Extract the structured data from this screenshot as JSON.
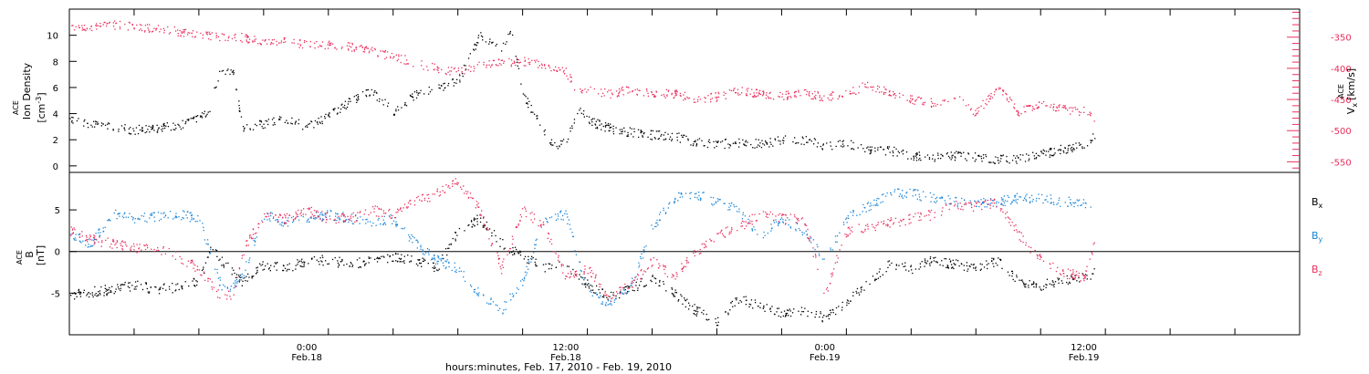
{
  "figure": {
    "xaxis_title": "hours:minutes, Feb. 17, 2010 - Feb. 19, 2010",
    "x_ticks": [
      {
        "hour": 24,
        "time": "0:00",
        "date": "Feb.18"
      },
      {
        "hour": 36,
        "time": "12:00",
        "date": "Feb.18"
      },
      {
        "hour": 48,
        "time": "0:00",
        "date": "Feb.19"
      },
      {
        "hour": 60,
        "time": "12:00",
        "date": "Feb.19"
      }
    ],
    "x_range_hours": [
      13,
      70
    ],
    "colors": {
      "black": "#000000",
      "pink": "#e8305e",
      "blue": "#1c86d8",
      "axis": "#000000"
    }
  },
  "chart_data": [
    {
      "type": "scatter",
      "panel": "top",
      "ylabel": {
        "prefix": "ACE",
        "name": "Ion Density",
        "unit_open": "[cm",
        "unit_exp": "-3",
        "unit_close": "]"
      },
      "ylim": [
        -0.5,
        12
      ],
      "yticks": [
        0,
        2,
        4,
        6,
        8,
        10
      ],
      "right_ylabel": {
        "prefix": "ACE",
        "name": "V",
        "sub": "x",
        "unit": "[km/s]"
      },
      "right_ylim": [
        -567,
        -305
      ],
      "right_yticks": [
        -350,
        -400,
        -450,
        -500,
        -550
      ],
      "series": [
        {
          "color": "pink",
          "axis": "right",
          "points": [
            [
              13,
              -330
            ],
            [
              14,
              -333
            ],
            [
              15,
              -330
            ],
            [
              16,
              -332
            ],
            [
              17,
              -336
            ],
            [
              18,
              -340
            ],
            [
              19,
              -345
            ],
            [
              20,
              -348
            ],
            [
              21,
              -350
            ],
            [
              22,
              -355
            ],
            [
              23,
              -357
            ],
            [
              24,
              -360
            ],
            [
              25,
              -362
            ],
            [
              26,
              -365
            ],
            [
              27,
              -372
            ],
            [
              28,
              -380
            ],
            [
              29,
              -390
            ],
            [
              30,
              -400
            ],
            [
              31,
              -405
            ],
            [
              32,
              -395
            ],
            [
              33,
              -390
            ],
            [
              34,
              -388
            ],
            [
              35,
              -393
            ],
            [
              36,
              -405
            ],
            [
              36.6,
              -440
            ],
            [
              37,
              -433
            ],
            [
              38,
              -440
            ],
            [
              39,
              -433
            ],
            [
              40,
              -440
            ],
            [
              41,
              -440
            ],
            [
              42,
              -448
            ],
            [
              43,
              -445
            ],
            [
              44,
              -435
            ],
            [
              45,
              -440
            ],
            [
              46,
              -443
            ],
            [
              47,
              -440
            ],
            [
              48,
              -445
            ],
            [
              49,
              -440
            ],
            [
              50,
              -425
            ],
            [
              51,
              -440
            ],
            [
              52,
              -450
            ],
            [
              53,
              -455
            ],
            [
              54,
              -445
            ],
            [
              55,
              -470
            ],
            [
              56,
              -430
            ],
            [
              57,
              -470
            ],
            [
              58,
              -455
            ],
            [
              59,
              -465
            ],
            [
              60,
              -468
            ],
            [
              60.5,
              -480
            ]
          ]
        },
        {
          "color": "black",
          "axis": "left",
          "points": [
            [
              13,
              3.7
            ],
            [
              14,
              3.2
            ],
            [
              15,
              3.0
            ],
            [
              16,
              2.8
            ],
            [
              17,
              2.9
            ],
            [
              18,
              3.1
            ],
            [
              19,
              3.6
            ],
            [
              19.5,
              4.5
            ],
            [
              20,
              7.5
            ],
            [
              20.6,
              7.0
            ],
            [
              21,
              3.0
            ],
            [
              22,
              3.2
            ],
            [
              23,
              3.6
            ],
            [
              24,
              3.0
            ],
            [
              25,
              3.8
            ],
            [
              26,
              5.0
            ],
            [
              27,
              5.7
            ],
            [
              28,
              4.2
            ],
            [
              29,
              5.5
            ],
            [
              30,
              6.0
            ],
            [
              31,
              6.5
            ],
            [
              32,
              10.0
            ],
            [
              33,
              9.0
            ],
            [
              33.5,
              10.3
            ],
            [
              34,
              5.5
            ],
            [
              35,
              2.5
            ],
            [
              35.5,
              1.6
            ],
            [
              36,
              1.8
            ],
            [
              36.6,
              4.5
            ],
            [
              37,
              3.5
            ],
            [
              38,
              2.9
            ],
            [
              39,
              2.6
            ],
            [
              40,
              2.4
            ],
            [
              41,
              2.3
            ],
            [
              42,
              1.9
            ],
            [
              43,
              1.7
            ],
            [
              44,
              1.8
            ],
            [
              45,
              1.7
            ],
            [
              46,
              2.0
            ],
            [
              47,
              2.0
            ],
            [
              48,
              1.6
            ],
            [
              49,
              1.7
            ],
            [
              50,
              1.3
            ],
            [
              51,
              1.2
            ],
            [
              52,
              0.8
            ],
            [
              53,
              0.7
            ],
            [
              54,
              0.8
            ],
            [
              55,
              0.7
            ],
            [
              56,
              0.5
            ],
            [
              57,
              0.6
            ],
            [
              58,
              0.9
            ],
            [
              59,
              1.3
            ],
            [
              60,
              1.7
            ],
            [
              60.5,
              2.4
            ]
          ]
        }
      ]
    },
    {
      "type": "scatter",
      "panel": "bottom",
      "ylabel": {
        "prefix": "ACE",
        "name": "B",
        "unit": "[nT]"
      },
      "ylim": [
        -10,
        9.5
      ],
      "yticks": [
        -5,
        0,
        5
      ],
      "zero_line": true,
      "series": [
        {
          "name": "B",
          "sub": "x",
          "color": "black",
          "points": [
            [
              13,
              -5.2
            ],
            [
              14,
              -4.8
            ],
            [
              15,
              -4.5
            ],
            [
              16,
              -4.0
            ],
            [
              17,
              -4.5
            ],
            [
              18,
              -4.2
            ],
            [
              19,
              -3.5
            ],
            [
              19.6,
              0.5
            ],
            [
              20,
              -1.0
            ],
            [
              21,
              -3.5
            ],
            [
              22,
              -1.5
            ],
            [
              23,
              -2.0
            ],
            [
              24,
              -1.0
            ],
            [
              25,
              -1.0
            ],
            [
              26,
              -1.5
            ],
            [
              27,
              -1.0
            ],
            [
              28,
              -0.5
            ],
            [
              29,
              -1.0
            ],
            [
              30,
              -2.0
            ],
            [
              31,
              2.5
            ],
            [
              32,
              4.0
            ],
            [
              33,
              1.0
            ],
            [
              34,
              -0.5
            ],
            [
              35,
              -2.0
            ],
            [
              36,
              -1.5
            ],
            [
              37,
              -4.0
            ],
            [
              38,
              -5.5
            ],
            [
              39,
              -4.5
            ],
            [
              40,
              -3.0
            ],
            [
              41,
              -5.0
            ],
            [
              42,
              -7.0
            ],
            [
              43,
              -8.5
            ],
            [
              44,
              -5.5
            ],
            [
              45,
              -6.5
            ],
            [
              46,
              -7.5
            ],
            [
              47,
              -7.0
            ],
            [
              48,
              -8.0
            ],
            [
              49,
              -6.0
            ],
            [
              50,
              -3.5
            ],
            [
              51,
              -1.5
            ],
            [
              52,
              -2.0
            ],
            [
              53,
              -1.0
            ],
            [
              54,
              -1.5
            ],
            [
              55,
              -2.0
            ],
            [
              56,
              -1.0
            ],
            [
              57,
              -3.5
            ],
            [
              58,
              -4.0
            ],
            [
              59,
              -3.5
            ],
            [
              60,
              -3.0
            ],
            [
              60.5,
              -2.5
            ]
          ]
        },
        {
          "name": "B",
          "sub": "y",
          "color": "blue",
          "points": [
            [
              13,
              2.0
            ],
            [
              14,
              1.0
            ],
            [
              15,
              4.5
            ],
            [
              16,
              4.0
            ],
            [
              17,
              4.2
            ],
            [
              18,
              4.6
            ],
            [
              19,
              4.0
            ],
            [
              20,
              -4.0
            ],
            [
              20.5,
              -4.5
            ],
            [
              21,
              -3.0
            ],
            [
              22,
              4.5
            ],
            [
              23,
              3.5
            ],
            [
              24,
              4.0
            ],
            [
              25,
              4.5
            ],
            [
              26,
              4.0
            ],
            [
              27,
              3.5
            ],
            [
              28,
              4.0
            ],
            [
              29,
              1.0
            ],
            [
              30,
              -1.0
            ],
            [
              31,
              -2.0
            ],
            [
              32,
              -5.0
            ],
            [
              33,
              -7.0
            ],
            [
              34,
              -3.5
            ],
            [
              35,
              4.0
            ],
            [
              36,
              4.5
            ],
            [
              37,
              -5.0
            ],
            [
              38,
              -6.0
            ],
            [
              39,
              -4.0
            ],
            [
              40,
              3.0
            ],
            [
              41,
              6.5
            ],
            [
              42,
              7.0
            ],
            [
              43,
              6.0
            ],
            [
              44,
              5.0
            ],
            [
              45,
              2.0
            ],
            [
              46,
              4.0
            ],
            [
              47,
              2.5
            ],
            [
              48,
              -1.0
            ],
            [
              49,
              4.0
            ],
            [
              50,
              5.5
            ],
            [
              51,
              7.0
            ],
            [
              52,
              7.0
            ],
            [
              53,
              6.5
            ],
            [
              54,
              6.0
            ],
            [
              55,
              6.0
            ],
            [
              56,
              6.0
            ],
            [
              57,
              6.5
            ],
            [
              58,
              6.5
            ],
            [
              59,
              6.0
            ],
            [
              60,
              6.0
            ],
            [
              60.5,
              5.0
            ]
          ]
        },
        {
          "name": "B",
          "sub": "z",
          "color": "pink",
          "points": [
            [
              13,
              2.5
            ],
            [
              14,
              1.5
            ],
            [
              15,
              1.0
            ],
            [
              16,
              0.5
            ],
            [
              17,
              0.5
            ],
            [
              18,
              -0.5
            ],
            [
              19,
              -2.0
            ],
            [
              20,
              -5.5
            ],
            [
              20.6,
              -5.0
            ],
            [
              21,
              0
            ],
            [
              22,
              4.5
            ],
            [
              23,
              4.0
            ],
            [
              24,
              5.0
            ],
            [
              25,
              4.0
            ],
            [
              26,
              4.0
            ],
            [
              27,
              5.0
            ],
            [
              28,
              4.5
            ],
            [
              29,
              6.0
            ],
            [
              30,
              7.0
            ],
            [
              31,
              8.5
            ],
            [
              32,
              5.0
            ],
            [
              33,
              -2.0
            ],
            [
              34,
              5.0
            ],
            [
              35,
              3.0
            ],
            [
              36,
              -3.0
            ],
            [
              37,
              -2.0
            ],
            [
              38,
              -5.5
            ],
            [
              39,
              -4.0
            ],
            [
              40,
              -1.0
            ],
            [
              41,
              -3.0
            ],
            [
              42,
              0
            ],
            [
              43,
              2.0
            ],
            [
              44,
              3.0
            ],
            [
              45,
              4.5
            ],
            [
              46,
              4.0
            ],
            [
              47,
              4.0
            ],
            [
              48,
              -5.0
            ],
            [
              49,
              2.5
            ],
            [
              50,
              3.0
            ],
            [
              51,
              3.5
            ],
            [
              52,
              4.0
            ],
            [
              53,
              4.5
            ],
            [
              54,
              5.5
            ],
            [
              55,
              5.5
            ],
            [
              56,
              6.0
            ],
            [
              57,
              2.0
            ],
            [
              58,
              -1.0
            ],
            [
              59,
              -2.5
            ],
            [
              60,
              -3.0
            ],
            [
              60.5,
              1.0
            ]
          ]
        }
      ]
    }
  ]
}
